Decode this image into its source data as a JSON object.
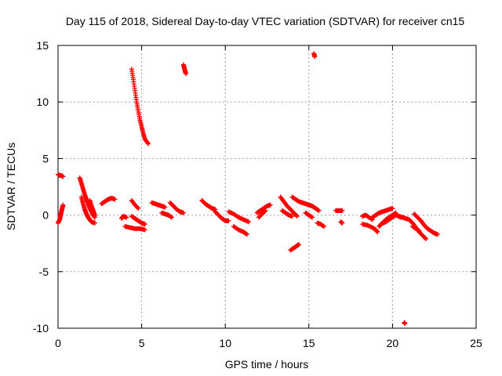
{
  "chart_data": {
    "type": "scatter",
    "title": "Day 115 of 2018, Sidereal Day-to-day VTEC variation (SDTVAR) for receiver cn15",
    "xlabel": "GPS time / hours",
    "ylabel": "SDTVAR / TECUs",
    "xlim": [
      0,
      25
    ],
    "ylim": [
      -10,
      15
    ],
    "xticks": [
      0,
      5,
      10,
      15,
      20,
      25
    ],
    "yticks": [
      -10,
      -5,
      0,
      5,
      10,
      15
    ],
    "xtick_labels": [
      "0",
      "5",
      "10",
      "15",
      "20",
      "25"
    ],
    "ytick_labels": [
      "-10",
      "-5",
      "0",
      "5",
      "10",
      "15"
    ],
    "grid": true,
    "marker": "+",
    "color": "#ff0000",
    "segments": [
      {
        "name": "s1",
        "points": [
          [
            0.0,
            3.6
          ],
          [
            0.1,
            3.5
          ],
          [
            0.2,
            3.5
          ],
          [
            0.3,
            3.4
          ]
        ]
      },
      {
        "name": "s2",
        "points": [
          [
            0.0,
            -0.7
          ],
          [
            0.1,
            -0.4
          ],
          [
            0.15,
            0.0
          ],
          [
            0.2,
            0.3
          ],
          [
            0.25,
            0.6
          ],
          [
            0.3,
            0.9
          ]
        ]
      },
      {
        "name": "s3",
        "points": [
          [
            1.3,
            3.3
          ],
          [
            1.4,
            2.8
          ],
          [
            1.5,
            2.3
          ],
          [
            1.6,
            1.8
          ],
          [
            1.7,
            1.4
          ],
          [
            1.8,
            1.0
          ],
          [
            1.9,
            0.6
          ],
          [
            2.0,
            0.3
          ],
          [
            2.1,
            0.0
          ],
          [
            2.2,
            -0.2
          ]
        ]
      },
      {
        "name": "s4",
        "points": [
          [
            1.4,
            1.6
          ],
          [
            1.5,
            1.0
          ],
          [
            1.6,
            0.5
          ],
          [
            1.7,
            0.1
          ],
          [
            1.8,
            -0.2
          ],
          [
            1.9,
            -0.4
          ],
          [
            2.0,
            -0.6
          ],
          [
            2.2,
            -0.7
          ]
        ]
      },
      {
        "name": "s5",
        "points": [
          [
            1.9,
            1.3
          ],
          [
            2.0,
            0.8
          ],
          [
            2.1,
            0.4
          ],
          [
            2.2,
            0.0
          ]
        ]
      },
      {
        "name": "s6",
        "points": [
          [
            2.6,
            1.0
          ],
          [
            2.8,
            1.2
          ],
          [
            3.0,
            1.4
          ],
          [
            3.2,
            1.5
          ],
          [
            3.4,
            1.4
          ]
        ]
      },
      {
        "name": "s7",
        "points": [
          [
            3.8,
            -0.3
          ],
          [
            3.9,
            -0.1
          ],
          [
            4.1,
            -0.2
          ]
        ]
      },
      {
        "name": "s8",
        "points": [
          [
            4.4,
            1.3
          ],
          [
            4.6,
            0.9
          ],
          [
            4.8,
            0.6
          ]
        ]
      },
      {
        "name": "s9",
        "points": [
          [
            4.4,
            -0.1
          ],
          [
            4.6,
            -0.3
          ],
          [
            4.8,
            -0.5
          ],
          [
            5.0,
            -0.7
          ],
          [
            5.2,
            -0.8
          ]
        ]
      },
      {
        "name": "s10",
        "points": [
          [
            4.0,
            -1.0
          ],
          [
            4.3,
            -1.1
          ],
          [
            4.6,
            -1.2
          ],
          [
            4.9,
            -1.2
          ],
          [
            5.2,
            -1.3
          ]
        ]
      },
      {
        "name": "s11",
        "points": [
          [
            4.4,
            12.9
          ],
          [
            4.5,
            12.0
          ],
          [
            4.6,
            11.0
          ],
          [
            4.7,
            10.0
          ],
          [
            4.8,
            9.2
          ],
          [
            4.9,
            8.4
          ],
          [
            5.0,
            7.8
          ],
          [
            5.1,
            7.2
          ],
          [
            5.2,
            6.7
          ],
          [
            5.4,
            6.3
          ]
        ]
      },
      {
        "name": "s12",
        "points": [
          [
            5.6,
            1.1
          ],
          [
            5.8,
            1.0
          ],
          [
            6.0,
            0.9
          ],
          [
            6.2,
            0.8
          ],
          [
            6.4,
            0.7
          ]
        ]
      },
      {
        "name": "s13",
        "points": [
          [
            6.2,
            0.2
          ],
          [
            6.4,
            0.1
          ],
          [
            6.6,
            0.0
          ],
          [
            6.8,
            -0.2
          ]
        ]
      },
      {
        "name": "s14",
        "points": [
          [
            6.7,
            1.1
          ],
          [
            6.9,
            0.8
          ],
          [
            7.1,
            0.5
          ],
          [
            7.3,
            0.3
          ],
          [
            7.5,
            0.2
          ]
        ]
      },
      {
        "name": "s15",
        "points": [
          [
            7.5,
            13.3
          ],
          [
            7.55,
            13.0
          ],
          [
            7.6,
            12.7
          ],
          [
            7.65,
            12.5
          ]
        ]
      },
      {
        "name": "s16",
        "points": [
          [
            8.6,
            1.3
          ],
          [
            8.8,
            1.0
          ],
          [
            9.0,
            0.8
          ],
          [
            9.2,
            0.6
          ],
          [
            9.4,
            0.5
          ]
        ]
      },
      {
        "name": "s17",
        "points": [
          [
            9.4,
            0.3
          ],
          [
            9.6,
            0.0
          ],
          [
            9.8,
            -0.3
          ],
          [
            10.0,
            -0.5
          ],
          [
            10.2,
            -0.5
          ]
        ]
      },
      {
        "name": "s18",
        "points": [
          [
            10.2,
            0.3
          ],
          [
            10.5,
            0.1
          ],
          [
            10.8,
            -0.2
          ],
          [
            11.1,
            -0.4
          ],
          [
            11.4,
            -0.6
          ]
        ]
      },
      {
        "name": "s19",
        "points": [
          [
            10.5,
            -1.0
          ],
          [
            10.8,
            -1.3
          ],
          [
            11.1,
            -1.5
          ],
          [
            11.3,
            -1.7
          ]
        ]
      },
      {
        "name": "s20",
        "points": [
          [
            11.9,
            0.2
          ],
          [
            12.1,
            0.4
          ],
          [
            12.3,
            0.6
          ],
          [
            12.5,
            0.8
          ],
          [
            12.7,
            0.9
          ]
        ]
      },
      {
        "name": "s21",
        "points": [
          [
            12.0,
            -0.2
          ],
          [
            12.2,
            0.1
          ],
          [
            12.4,
            0.4
          ]
        ]
      },
      {
        "name": "s22",
        "points": [
          [
            13.3,
            1.6
          ],
          [
            13.5,
            1.2
          ],
          [
            13.7,
            0.8
          ],
          [
            13.9,
            0.5
          ],
          [
            14.1,
            0.2
          ],
          [
            14.3,
            -0.1
          ]
        ]
      },
      {
        "name": "s23",
        "points": [
          [
            13.4,
            0.4
          ],
          [
            13.6,
            0.2
          ],
          [
            13.8,
            0.0
          ],
          [
            14.0,
            -0.1
          ]
        ]
      },
      {
        "name": "s24",
        "points": [
          [
            14.0,
            1.6
          ],
          [
            14.2,
            1.4
          ],
          [
            14.4,
            1.2
          ],
          [
            14.6,
            1.1
          ],
          [
            14.8,
            1.0
          ],
          [
            15.0,
            0.9
          ],
          [
            15.2,
            0.8
          ],
          [
            15.4,
            0.6
          ],
          [
            15.6,
            0.4
          ]
        ]
      },
      {
        "name": "s25",
        "points": [
          [
            14.8,
            0.2
          ],
          [
            15.0,
            0.0
          ],
          [
            15.2,
            -0.2
          ]
        ]
      },
      {
        "name": "s26",
        "points": [
          [
            13.9,
            -3.1
          ],
          [
            14.1,
            -2.9
          ],
          [
            14.3,
            -2.7
          ],
          [
            14.4,
            -2.6
          ]
        ]
      },
      {
        "name": "s27",
        "points": [
          [
            15.3,
            14.3
          ],
          [
            15.35,
            14.0
          ]
        ]
      },
      {
        "name": "s28",
        "points": [
          [
            15.5,
            -0.7
          ],
          [
            15.7,
            -0.8
          ],
          [
            15.9,
            -1.0
          ]
        ]
      },
      {
        "name": "s29",
        "points": [
          [
            16.6,
            0.4
          ],
          [
            16.8,
            0.4
          ],
          [
            17.0,
            0.4
          ]
        ]
      },
      {
        "name": "s30",
        "points": [
          [
            16.9,
            -0.6
          ],
          [
            17.0,
            -0.7
          ]
        ]
      },
      {
        "name": "s31",
        "points": [
          [
            18.2,
            -0.1
          ],
          [
            18.4,
            0.0
          ],
          [
            18.6,
            -0.2
          ],
          [
            18.8,
            -0.4
          ]
        ]
      },
      {
        "name": "s32",
        "points": [
          [
            18.2,
            -0.8
          ],
          [
            18.5,
            -0.9
          ],
          [
            18.8,
            -1.1
          ],
          [
            19.0,
            -1.3
          ],
          [
            19.1,
            -1.5
          ]
        ]
      },
      {
        "name": "s33",
        "points": [
          [
            18.8,
            -0.2
          ],
          [
            19.0,
            0.0
          ],
          [
            19.2,
            0.2
          ],
          [
            19.4,
            0.3
          ],
          [
            19.6,
            0.4
          ],
          [
            19.8,
            0.5
          ],
          [
            20.0,
            0.6
          ]
        ]
      },
      {
        "name": "s34",
        "points": [
          [
            19.2,
            -1.0
          ],
          [
            19.4,
            -0.7
          ],
          [
            19.6,
            -0.4
          ],
          [
            19.8,
            -0.2
          ],
          [
            20.0,
            0.0
          ],
          [
            20.2,
            0.2
          ]
        ]
      },
      {
        "name": "s35",
        "points": [
          [
            19.3,
            -0.8
          ],
          [
            19.6,
            -0.6
          ],
          [
            19.9,
            -0.3
          ],
          [
            20.2,
            0.0
          ],
          [
            20.5,
            -0.2
          ]
        ]
      },
      {
        "name": "s36",
        "points": [
          [
            20.4,
            -0.1
          ],
          [
            20.6,
            -0.2
          ],
          [
            20.8,
            -0.3
          ],
          [
            21.0,
            -0.4
          ],
          [
            21.2,
            -0.7
          ],
          [
            21.4,
            -1.1
          ],
          [
            21.6,
            -1.5
          ],
          [
            21.8,
            -1.8
          ],
          [
            22.0,
            -2.1
          ]
        ]
      },
      {
        "name": "s37",
        "points": [
          [
            21.3,
            0.1
          ],
          [
            21.5,
            -0.2
          ],
          [
            21.7,
            -0.5
          ],
          [
            21.9,
            -0.9
          ],
          [
            22.1,
            -1.2
          ],
          [
            22.3,
            -1.4
          ],
          [
            22.5,
            -1.6
          ],
          [
            22.7,
            -1.7
          ]
        ]
      },
      {
        "name": "s38",
        "points": [
          [
            21.2,
            -1.0
          ],
          [
            21.4,
            -1.2
          ],
          [
            21.6,
            -1.4
          ]
        ]
      },
      {
        "name": "s39",
        "points": [
          [
            20.7,
            -9.5
          ],
          [
            20.75,
            -9.6
          ]
        ]
      }
    ]
  }
}
